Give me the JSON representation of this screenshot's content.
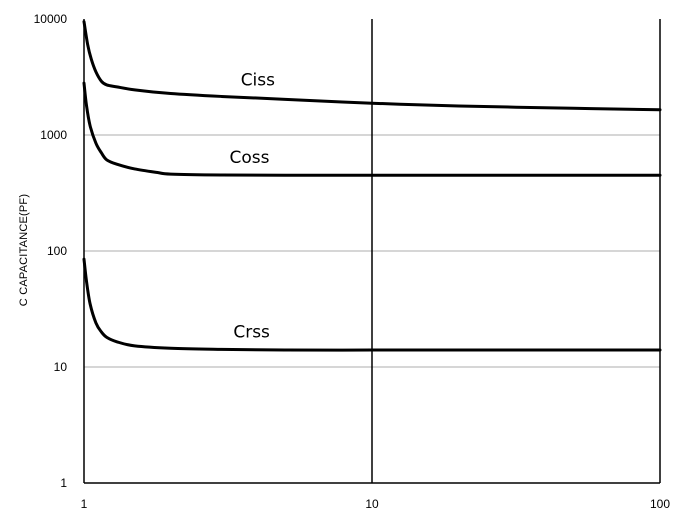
{
  "chart_data": {
    "type": "line",
    "title": "",
    "xlabel": "",
    "ylabel": "C CAPACITANCE(PF)",
    "xscale": "log",
    "yscale": "log",
    "xlim": [
      1,
      100
    ],
    "ylim": [
      1,
      10000
    ],
    "x_ticks": [
      "1",
      "10",
      "100"
    ],
    "y_ticks": [
      "1",
      "10",
      "100",
      "1000",
      "10000"
    ],
    "grid": "horizontal gridlines at 10, 100, 1000; vertical line at 10",
    "legend": "none (labels placed on curves)",
    "series": [
      {
        "name": "Ciss",
        "x": [
          1,
          1.03,
          1.06,
          1.1,
          1.15,
          1.2,
          1.3,
          1.5,
          2,
          3,
          5,
          10,
          20,
          50,
          100
        ],
        "y": [
          9500,
          6000,
          4500,
          3500,
          2900,
          2700,
          2600,
          2450,
          2280,
          2150,
          2030,
          1880,
          1780,
          1700,
          1650
        ]
      },
      {
        "name": "Coss",
        "x": [
          1,
          1.02,
          1.05,
          1.1,
          1.15,
          1.2,
          1.3,
          1.5,
          1.8,
          2,
          3,
          5,
          10,
          20,
          50,
          100
        ],
        "y": [
          2800,
          1800,
          1200,
          850,
          700,
          610,
          560,
          510,
          475,
          460,
          452,
          450,
          450,
          450,
          450,
          450
        ]
      },
      {
        "name": "Crss",
        "x": [
          1,
          1.02,
          1.05,
          1.1,
          1.15,
          1.2,
          1.3,
          1.5,
          2,
          3,
          5,
          10,
          20,
          50,
          100
        ],
        "y": [
          85,
          55,
          35,
          24,
          20,
          18,
          16.5,
          15.2,
          14.5,
          14.2,
          14,
          14,
          14,
          14,
          14
        ]
      }
    ]
  }
}
